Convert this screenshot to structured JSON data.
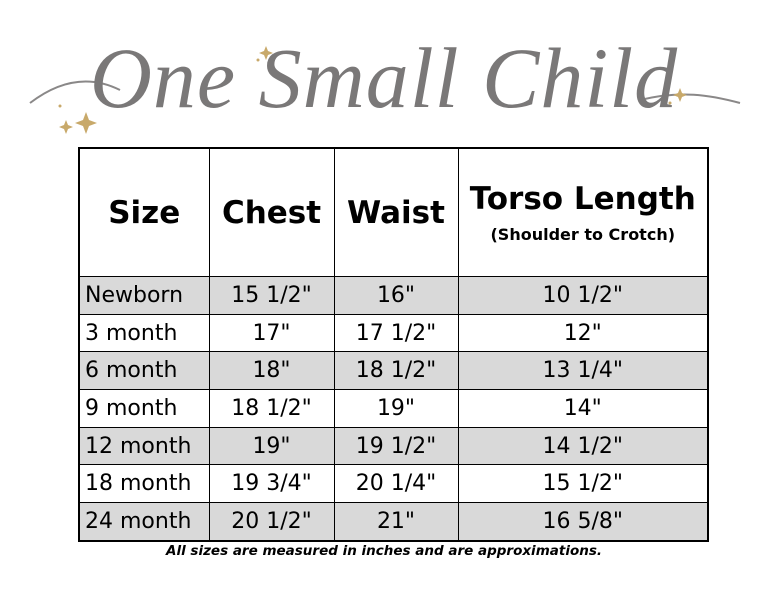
{
  "header": {
    "title": "One Small Child"
  },
  "table": {
    "headers": [
      "Size",
      "Chest",
      "Waist",
      "Torso Length"
    ],
    "header_note": "(Shoulder to Crotch)",
    "rows": [
      [
        "Newborn",
        "15 1/2\"",
        "16\"",
        "10 1/2\""
      ],
      [
        "3 month",
        "17\"",
        "17 1/2\"",
        "12\""
      ],
      [
        "6 month",
        "18\"",
        "18 1/2\"",
        "13 1/4\""
      ],
      [
        "9 month",
        "18 1/2\"",
        "19\"",
        "14\""
      ],
      [
        "12 month",
        "19\"",
        "19 1/2\"",
        "14 1/2\""
      ],
      [
        "18 month",
        "19 3/4\"",
        "20 1/4\"",
        "15 1/2\""
      ],
      [
        "24 month",
        "20 1/2\"",
        "21\"",
        "16 5/8\""
      ]
    ]
  },
  "footnote": "All sizes are measured in inches and are approximations."
}
